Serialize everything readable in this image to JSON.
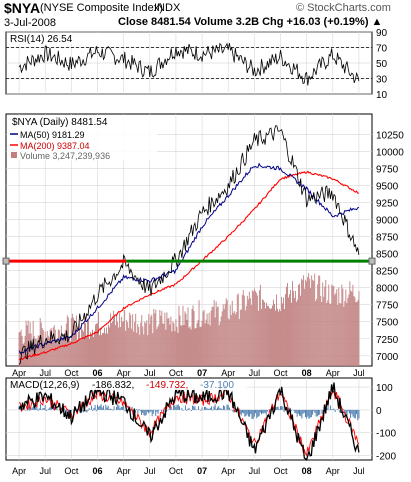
{
  "header": {
    "symbol": "$NYA",
    "name": "(NYSE Composite Index)",
    "exchange": "INDX",
    "source": "© StockCharts.com",
    "date": "3-Jul-2008",
    "stats": "Close 8481.54  Volume 3.2B  Chg +16.03 (+0.19%) ▲"
  },
  "colors": {
    "price": "#000000",
    "ma50": "#00008b",
    "ma200": "#ff0000",
    "volume": "#c08080",
    "support_line": "#008000",
    "resistance_line": "#ff0000",
    "macd_hist": "#4f7fb0"
  },
  "chart_data": [
    {
      "type": "line",
      "panel": "rsi",
      "label": "RSI(14) 26.54",
      "ylim": [
        10,
        90
      ],
      "yticks": [
        90,
        70,
        50,
        30,
        10
      ],
      "reference_lines": [
        70,
        30
      ],
      "last_value": 26.54,
      "x": [
        "Apr 2005",
        "Jul 2005",
        "Oct 2005",
        "Jan 2006",
        "Apr 2006",
        "Jul 2006",
        "Oct 2006",
        "Jan 2007",
        "Apr 2007",
        "Jul 2007",
        "Oct 2007",
        "Jan 2008",
        "Apr 2008",
        "Jul 2008"
      ],
      "values": [
        45,
        62,
        48,
        65,
        55,
        38,
        68,
        62,
        66,
        40,
        58,
        30,
        60,
        26.54
      ]
    },
    {
      "type": "line",
      "panel": "price",
      "title": "$NYA (Daily) 8481.54",
      "ylim": [
        6850,
        10550
      ],
      "yticks": [
        10250,
        10000,
        9750,
        9500,
        9250,
        9000,
        8750,
        8500,
        8250,
        8000,
        7750,
        7500,
        7250,
        7000
      ],
      "xticks": [
        "Apr",
        "Jul",
        "Oct",
        "06",
        "Apr",
        "Jul",
        "Oct",
        "07",
        "Apr",
        "Jul",
        "Oct",
        "08",
        "Apr",
        "Jul"
      ],
      "horizontal_lines": [
        {
          "name": "support",
          "value": 8390,
          "color": "#008000"
        },
        {
          "name": "resistance",
          "value": 8390,
          "color": "#ff0000"
        }
      ],
      "x": [
        "Apr 2005",
        "Jul 2005",
        "Oct 2005",
        "Jan 2006",
        "Apr 2006",
        "Jul 2006",
        "Oct 2006",
        "Jan 2007",
        "Apr 2007",
        "Jul 2007",
        "Oct 2007",
        "Jan 2008",
        "Apr 2008",
        "Jul 2008"
      ],
      "series": [
        {
          "name": "$NYA (Daily) 8481.54",
          "values": [
            7000,
            7250,
            7300,
            7900,
            8350,
            7950,
            8400,
            9100,
            9500,
            10150,
            10300,
            9300,
            9400,
            8481.54
          ]
        },
        {
          "name": "MA(50) 9181.29",
          "values": [
            7050,
            7180,
            7280,
            7700,
            8150,
            8100,
            8250,
            8900,
            9350,
            9800,
            9750,
            9450,
            9050,
            9181.29
          ]
        },
        {
          "name": "MA(200) 9387.04",
          "values": [
            6950,
            7050,
            7180,
            7350,
            7700,
            7900,
            8050,
            8400,
            8750,
            9150,
            9600,
            9700,
            9600,
            9387.04
          ]
        }
      ],
      "volume": {
        "label": "Volume 3,247,239,936",
        "last_value": 3247239936,
        "values": [
          0.3,
          0.32,
          0.35,
          0.38,
          0.42,
          0.4,
          0.42,
          0.48,
          0.5,
          0.62,
          0.6,
          0.75,
          0.65,
          0.68
        ]
      }
    },
    {
      "type": "line",
      "panel": "macd",
      "label": "MACD(12,26,9)",
      "values_label": [
        "-186.832",
        "-149.732",
        "-37.100"
      ],
      "ylim": [
        -220,
        140
      ],
      "yticks": [
        100,
        0,
        -100,
        -200
      ],
      "xticks": [
        "Apr",
        "Jul",
        "Oct",
        "06",
        "Apr",
        "Jul",
        "Oct",
        "07",
        "Apr",
        "Jul",
        "Oct",
        "08",
        "Apr",
        "Jul"
      ],
      "x": [
        "Apr 2005",
        "Jul 2005",
        "Oct 2005",
        "Jan 2006",
        "Apr 2006",
        "Jul 2006",
        "Oct 2006",
        "Jan 2007",
        "Apr 2007",
        "Jul 2007",
        "Oct 2007",
        "Jan 2008",
        "Apr 2008",
        "Jul 2008"
      ],
      "series": [
        {
          "name": "MACD",
          "values": [
            20,
            60,
            -30,
            80,
            40,
            -120,
            70,
            50,
            80,
            -180,
            90,
            -230,
            100,
            -186.832
          ]
        },
        {
          "name": "Signal",
          "values": [
            10,
            50,
            -20,
            70,
            30,
            -100,
            60,
            40,
            70,
            -150,
            80,
            -200,
            90,
            -149.732
          ]
        },
        {
          "name": "Histogram",
          "values": [
            10,
            10,
            -10,
            10,
            10,
            -20,
            10,
            10,
            10,
            -30,
            10,
            -30,
            10,
            -37.1
          ]
        }
      ]
    }
  ],
  "legend": {
    "ma50": "MA(50) 9181.29",
    "ma200": "MA(200) 9387.04",
    "volume": "Volume 3,247,239,936"
  }
}
